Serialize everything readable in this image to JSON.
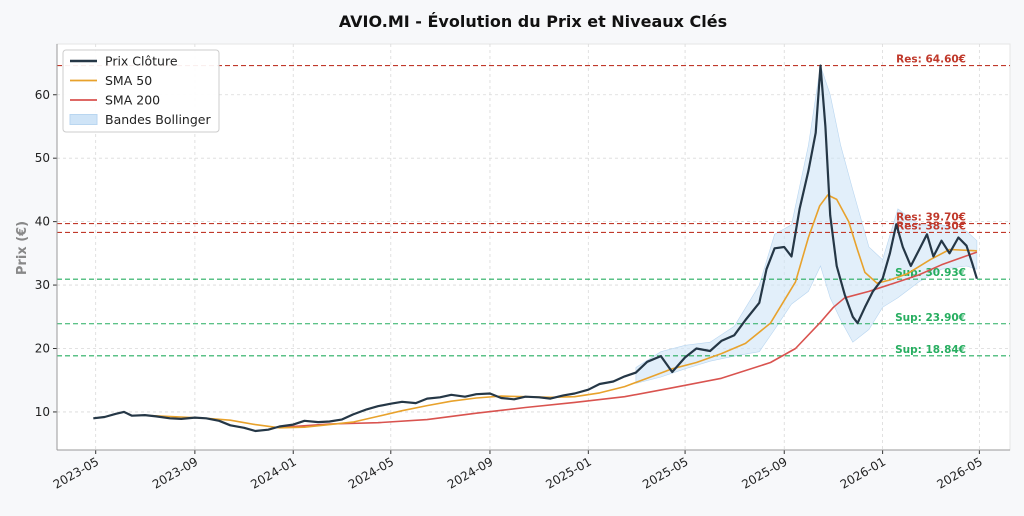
{
  "chart_data": {
    "type": "line",
    "title": "AVIO.MI - Évolution du Prix et Niveaux Clés",
    "xlabel": "",
    "ylabel": "Prix (€)",
    "xlim": [
      "2023-03-14",
      "2026-06-08"
    ],
    "ylim": [
      4,
      68
    ],
    "grid": true,
    "legend_position": "top-left",
    "x_ticks": [
      "2023-05",
      "2023-09",
      "2024-01",
      "2024-05",
      "2024-09",
      "2025-01",
      "2025-05",
      "2025-09",
      "2026-01",
      "2026-05"
    ],
    "y_ticks": [
      10,
      20,
      30,
      40,
      50,
      60
    ],
    "colors": {
      "close": "#253746",
      "sma50": "#e8a22c",
      "sma200": "#d9534f",
      "bollinger": "#cfe4f7",
      "resistance": "#c0392b",
      "support": "#27ae60"
    },
    "legend": [
      "Prix Clôture",
      "SMA 50",
      "SMA 200",
      "Bandes Bollinger"
    ],
    "levels": [
      {
        "kind": "resistance",
        "value": 64.6,
        "label": "Res: 64.60€"
      },
      {
        "kind": "resistance",
        "value": 39.7,
        "label": "Res: 39.70€"
      },
      {
        "kind": "resistance",
        "value": 38.3,
        "label": "Res: 38.30€"
      },
      {
        "kind": "support",
        "value": 30.93,
        "label": "Sup: 30.93€"
      },
      {
        "kind": "support",
        "value": 23.9,
        "label": "Sup: 23.90€"
      },
      {
        "kind": "support",
        "value": 18.84,
        "label": "Sup: 18.84€"
      }
    ],
    "series": [
      {
        "name": "Prix Clôture",
        "points": [
          [
            "2023-04-28",
            9.0
          ],
          [
            "2023-05-12",
            9.2
          ],
          [
            "2023-05-26",
            9.7
          ],
          [
            "2023-06-05",
            10.0
          ],
          [
            "2023-06-15",
            9.4
          ],
          [
            "2023-07-01",
            9.5
          ],
          [
            "2023-07-15",
            9.3
          ],
          [
            "2023-08-01",
            9.0
          ],
          [
            "2023-08-15",
            8.9
          ],
          [
            "2023-09-01",
            9.1
          ],
          [
            "2023-09-15",
            9.0
          ],
          [
            "2023-10-01",
            8.6
          ],
          [
            "2023-10-15",
            7.9
          ],
          [
            "2023-11-01",
            7.5
          ],
          [
            "2023-11-15",
            7.0
          ],
          [
            "2023-12-01",
            7.2
          ],
          [
            "2023-12-15",
            7.7
          ],
          [
            "2024-01-01",
            8.0
          ],
          [
            "2024-01-15",
            8.6
          ],
          [
            "2024-02-01",
            8.4
          ],
          [
            "2024-02-15",
            8.5
          ],
          [
            "2024-03-01",
            8.8
          ],
          [
            "2024-03-15",
            9.6
          ],
          [
            "2024-04-01",
            10.4
          ],
          [
            "2024-04-15",
            10.9
          ],
          [
            "2024-05-01",
            11.3
          ],
          [
            "2024-05-15",
            11.6
          ],
          [
            "2024-06-01",
            11.4
          ],
          [
            "2024-06-15",
            12.1
          ],
          [
            "2024-07-01",
            12.3
          ],
          [
            "2024-07-15",
            12.7
          ],
          [
            "2024-08-01",
            12.4
          ],
          [
            "2024-08-15",
            12.8
          ],
          [
            "2024-09-01",
            12.9
          ],
          [
            "2024-09-15",
            12.2
          ],
          [
            "2024-10-01",
            12.0
          ],
          [
            "2024-10-15",
            12.4
          ],
          [
            "2024-11-01",
            12.3
          ],
          [
            "2024-11-15",
            12.1
          ],
          [
            "2024-12-01",
            12.6
          ],
          [
            "2024-12-15",
            12.9
          ],
          [
            "2025-01-01",
            13.5
          ],
          [
            "2025-01-15",
            14.4
          ],
          [
            "2025-02-01",
            14.8
          ],
          [
            "2025-02-15",
            15.6
          ],
          [
            "2025-03-01",
            16.2
          ],
          [
            "2025-03-15",
            17.9
          ],
          [
            "2025-04-01",
            18.8
          ],
          [
            "2025-04-15",
            16.3
          ],
          [
            "2025-05-01",
            18.6
          ],
          [
            "2025-05-15",
            20.0
          ],
          [
            "2025-06-01",
            19.6
          ],
          [
            "2025-06-15",
            21.2
          ],
          [
            "2025-07-01",
            22.1
          ],
          [
            "2025-07-15",
            24.5
          ],
          [
            "2025-08-01",
            27.2
          ],
          [
            "2025-08-10",
            32.5
          ],
          [
            "2025-08-20",
            35.8
          ],
          [
            "2025-09-01",
            36.0
          ],
          [
            "2025-09-10",
            34.5
          ],
          [
            "2025-09-20",
            42.0
          ],
          [
            "2025-10-01",
            48.0
          ],
          [
            "2025-10-10",
            54.0
          ],
          [
            "2025-10-16",
            64.6
          ],
          [
            "2025-10-22",
            55.0
          ],
          [
            "2025-10-28",
            41.0
          ],
          [
            "2025-11-05",
            33.0
          ],
          [
            "2025-11-15",
            28.5
          ],
          [
            "2025-11-25",
            25.0
          ],
          [
            "2025-12-01",
            24.0
          ],
          [
            "2025-12-10",
            26.5
          ],
          [
            "2025-12-20",
            29.0
          ],
          [
            "2026-01-01",
            31.0
          ],
          [
            "2026-01-10",
            35.0
          ],
          [
            "2026-01-18",
            39.6
          ],
          [
            "2026-01-26",
            36.0
          ],
          [
            "2026-02-05",
            33.0
          ],
          [
            "2026-02-15",
            35.5
          ],
          [
            "2026-02-25",
            38.0
          ],
          [
            "2026-03-05",
            34.5
          ],
          [
            "2026-03-15",
            37.0
          ],
          [
            "2026-03-25",
            35.0
          ],
          [
            "2026-04-05",
            37.5
          ],
          [
            "2026-04-15",
            36.2
          ],
          [
            "2026-04-22",
            33.5
          ],
          [
            "2026-04-28",
            31.0
          ]
        ]
      },
      {
        "name": "SMA 50",
        "points": [
          [
            "2023-07-10",
            9.4
          ],
          [
            "2023-08-15",
            9.2
          ],
          [
            "2023-09-15",
            9.0
          ],
          [
            "2023-10-15",
            8.7
          ],
          [
            "2023-11-15",
            8.0
          ],
          [
            "2023-12-15",
            7.5
          ],
          [
            "2024-01-15",
            7.6
          ],
          [
            "2024-02-15",
            8.0
          ],
          [
            "2024-03-15",
            8.4
          ],
          [
            "2024-04-15",
            9.3
          ],
          [
            "2024-05-15",
            10.2
          ],
          [
            "2024-06-15",
            11.0
          ],
          [
            "2024-07-15",
            11.7
          ],
          [
            "2024-08-15",
            12.2
          ],
          [
            "2024-09-15",
            12.5
          ],
          [
            "2024-10-15",
            12.4
          ],
          [
            "2024-11-15",
            12.3
          ],
          [
            "2024-12-15",
            12.4
          ],
          [
            "2025-01-15",
            13.0
          ],
          [
            "2025-02-15",
            14.0
          ],
          [
            "2025-03-15",
            15.3
          ],
          [
            "2025-04-15",
            16.8
          ],
          [
            "2025-05-15",
            17.8
          ],
          [
            "2025-06-15",
            19.2
          ],
          [
            "2025-07-15",
            20.8
          ],
          [
            "2025-08-15",
            24.0
          ],
          [
            "2025-09-15",
            30.5
          ],
          [
            "2025-10-01",
            37.5
          ],
          [
            "2025-10-15",
            42.5
          ],
          [
            "2025-10-25",
            44.2
          ],
          [
            "2025-11-05",
            43.5
          ],
          [
            "2025-11-20",
            40.0
          ],
          [
            "2025-12-01",
            35.5
          ],
          [
            "2025-12-10",
            32.0
          ],
          [
            "2025-12-25",
            30.3
          ],
          [
            "2026-01-10",
            30.8
          ],
          [
            "2026-02-01",
            31.8
          ],
          [
            "2026-03-01",
            34.0
          ],
          [
            "2026-03-25",
            35.6
          ],
          [
            "2026-04-28",
            35.4
          ]
        ]
      },
      {
        "name": "SMA 200",
        "points": [
          [
            "2023-12-20",
            7.6
          ],
          [
            "2024-02-15",
            8.1
          ],
          [
            "2024-04-15",
            8.3
          ],
          [
            "2024-06-15",
            8.8
          ],
          [
            "2024-08-15",
            9.8
          ],
          [
            "2024-10-15",
            10.7
          ],
          [
            "2024-12-15",
            11.5
          ],
          [
            "2025-02-15",
            12.4
          ],
          [
            "2025-04-15",
            13.8
          ],
          [
            "2025-06-15",
            15.3
          ],
          [
            "2025-08-15",
            17.8
          ],
          [
            "2025-09-15",
            20.0
          ],
          [
            "2025-10-15",
            24.0
          ],
          [
            "2025-11-01",
            26.5
          ],
          [
            "2025-11-15",
            28.0
          ],
          [
            "2025-12-15",
            29.0
          ],
          [
            "2026-01-15",
            30.3
          ],
          [
            "2026-02-15",
            31.6
          ],
          [
            "2026-03-15",
            33.2
          ],
          [
            "2026-04-28",
            35.2
          ]
        ]
      }
    ],
    "bollinger": {
      "name": "Bandes Bollinger",
      "upper": [
        [
          "2025-03-01",
          17.0
        ],
        [
          "2025-04-01",
          19.5
        ],
        [
          "2025-05-01",
          20.5
        ],
        [
          "2025-06-01",
          21.0
        ],
        [
          "2025-07-01",
          23.5
        ],
        [
          "2025-08-01",
          30.0
        ],
        [
          "2025-08-20",
          38.0
        ],
        [
          "2025-09-10",
          39.5
        ],
        [
          "2025-10-01",
          52.0
        ],
        [
          "2025-10-16",
          64.6
        ],
        [
          "2025-10-28",
          60.0
        ],
        [
          "2025-11-10",
          52.0
        ],
        [
          "2025-11-25",
          45.0
        ],
        [
          "2025-12-15",
          36.0
        ],
        [
          "2026-01-01",
          34.0
        ],
        [
          "2026-01-20",
          42.0
        ],
        [
          "2026-02-15",
          39.5
        ],
        [
          "2026-03-15",
          39.5
        ],
        [
          "2026-04-15",
          38.5
        ],
        [
          "2026-04-28",
          37.0
        ]
      ],
      "lower": [
        [
          "2025-03-01",
          14.5
        ],
        [
          "2025-04-01",
          15.5
        ],
        [
          "2025-05-01",
          16.8
        ],
        [
          "2025-06-01",
          18.0
        ],
        [
          "2025-07-01",
          18.8
        ],
        [
          "2025-08-01",
          19.5
        ],
        [
          "2025-08-20",
          23.0
        ],
        [
          "2025-09-10",
          27.0
        ],
        [
          "2025-10-01",
          29.0
        ],
        [
          "2025-10-16",
          33.0
        ],
        [
          "2025-10-28",
          28.0
        ],
        [
          "2025-11-10",
          24.5
        ],
        [
          "2025-11-25",
          21.0
        ],
        [
          "2025-12-15",
          23.0
        ],
        [
          "2026-01-01",
          26.5
        ],
        [
          "2026-01-20",
          28.0
        ],
        [
          "2026-02-15",
          30.5
        ],
        [
          "2026-03-15",
          32.5
        ],
        [
          "2026-04-15",
          33.0
        ],
        [
          "2026-04-28",
          32.5
        ]
      ]
    }
  }
}
